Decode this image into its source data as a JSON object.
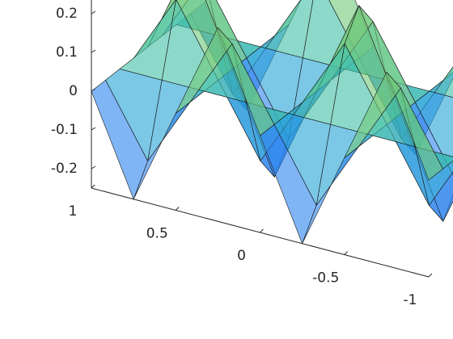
{
  "chart_data": {
    "type": "surface",
    "x": [
      -1,
      -0.75,
      -0.5,
      -0.25,
      0,
      0.25,
      0.5,
      0.75,
      1
    ],
    "y": [
      1,
      0.75,
      0.5,
      0.25,
      0,
      -0.25,
      -0.5,
      -0.75,
      -1
    ],
    "z": [
      [
        0,
        -0.25,
        0,
        0.25,
        0,
        -0.25,
        0,
        0.25,
        0
      ],
      [
        0,
        -0.18,
        0,
        0.18,
        0,
        -0.18,
        0,
        0.18,
        0
      ],
      [
        0,
        0,
        0,
        0,
        0,
        0,
        0,
        0,
        0
      ],
      [
        0,
        0.18,
        0,
        -0.18,
        0,
        0.18,
        0,
        -0.18,
        0
      ],
      [
        0,
        0.25,
        0,
        -0.25,
        0,
        0.25,
        0,
        -0.25,
        0
      ],
      [
        0,
        0.18,
        0,
        -0.18,
        0,
        0.18,
        0,
        -0.18,
        0
      ],
      [
        0,
        0,
        0,
        0,
        0,
        0,
        0,
        0,
        0
      ],
      [
        0,
        -0.18,
        0,
        0.18,
        0,
        -0.18,
        0,
        0.18,
        0
      ],
      [
        0,
        -0.25,
        0,
        0.25,
        0,
        -0.25,
        0,
        0.25,
        0
      ]
    ],
    "xlim": [
      -1,
      1
    ],
    "ylim": [
      -1,
      1
    ],
    "yticks": [
      1,
      0.5,
      0,
      -0.5,
      -1
    ],
    "zlim": [
      -0.25,
      0.25
    ],
    "zticks": [
      0.2,
      0.1,
      0,
      -0.1,
      -0.2
    ],
    "colormap": [
      "#3e26a8",
      "#2f7cf6",
      "#1cb8c4",
      "#7ccb6d",
      "#f9d636"
    ],
    "face_alpha": 0.6,
    "edge_color": "#1a1a1a"
  }
}
